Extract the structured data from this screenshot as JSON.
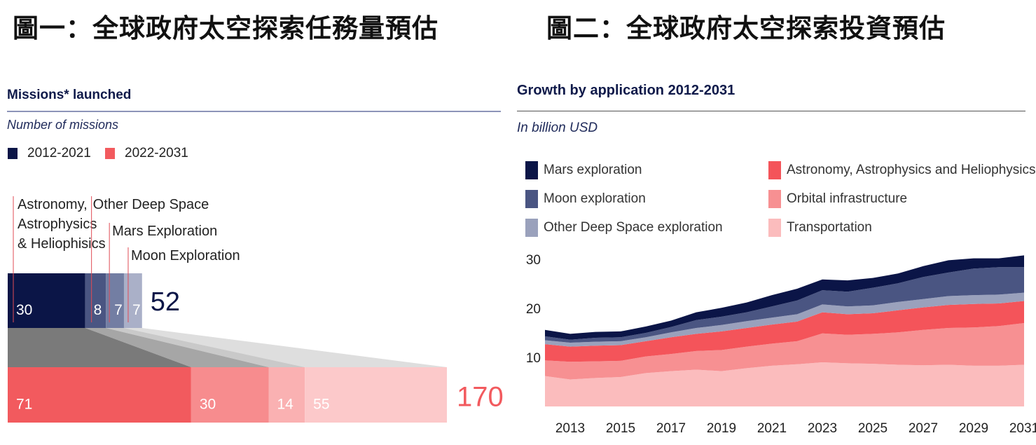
{
  "figure1": {
    "caption": "圖一：全球政府太空探索任務量預估",
    "heading": "Missions* launched",
    "subtitle": "Number of missions",
    "legend": [
      {
        "label": "2012-2021",
        "color": "#0b1547"
      },
      {
        "label": "2022-2031",
        "color": "#f25a5e"
      }
    ]
  },
  "figure2": {
    "caption": "圖二：全球政府太空探索投資預估",
    "heading": "Growth by application 2012-2031",
    "subtitle": "In billion USD",
    "legend": [
      {
        "label": "Mars exploration",
        "color": "#0b1547"
      },
      {
        "label": "Moon exploration",
        "color": "#4a5582"
      },
      {
        "label": "Other Deep Space exploration",
        "color": "#9aa1bc"
      },
      {
        "label": "Astronomy, Astrophysics and Heliophysics",
        "color": "#f4545a"
      },
      {
        "label": "Orbital infrastructure",
        "color": "#f79092"
      },
      {
        "label": "Transportation",
        "color": "#fbbcbd"
      }
    ]
  },
  "chart_data": [
    {
      "type": "bar",
      "title": "Missions* launched",
      "subtitle": "Number of missions",
      "categories": [
        "Astronomy, Astrophysics & Heliophisics",
        "Other Deep Space",
        "Mars Exploration",
        "Moon Exploration"
      ],
      "series": [
        {
          "name": "2012-2021",
          "values": [
            30,
            8,
            7,
            7
          ],
          "total": 52,
          "colors": [
            "#0b1547",
            "#4a5582",
            "#737ea3",
            "#aab0c8"
          ],
          "total_color": "#0b1547"
        },
        {
          "name": "2022-2031",
          "values": [
            71,
            30,
            14,
            55
          ],
          "total": 170,
          "colors": [
            "#f25a5e",
            "#f78c8e",
            "#fab1b2",
            "#fcc9ca"
          ],
          "total_color": "#f25a5e"
        }
      ],
      "category_labels": [
        "Astronomy,",
        "Astrophysics",
        "& Heliophisics",
        "Other Deep Space",
        "Mars Exploration",
        "Moon Exploration"
      ],
      "stacked": true,
      "orientation": "horizontal"
    },
    {
      "type": "area",
      "title": "Growth by application 2012-2031",
      "subtitle": "In billion USD",
      "stacked": true,
      "x": [
        2012,
        2013,
        2014,
        2015,
        2016,
        2017,
        2018,
        2019,
        2020,
        2021,
        2022,
        2023,
        2024,
        2025,
        2026,
        2027,
        2028,
        2029,
        2030,
        2031
      ],
      "x_ticks": [
        "2013",
        "2015",
        "2017",
        "2019",
        "2021",
        "2023",
        "2025",
        "2027",
        "2029",
        "2031"
      ],
      "y_ticks": [
        "10",
        "20",
        "30"
      ],
      "ylim": [
        0,
        31
      ],
      "grid": false,
      "legend_position": "top",
      "series": [
        {
          "name": "Transportation",
          "color": "#fbbcbd",
          "values": [
            6.2,
            5.5,
            5.8,
            6.0,
            6.8,
            7.2,
            7.5,
            7.2,
            7.8,
            8.3,
            8.6,
            9.0,
            8.8,
            8.7,
            8.5,
            8.4,
            8.5,
            8.3,
            8.3,
            8.5
          ]
        },
        {
          "name": "Orbital infrastructure",
          "color": "#f79092",
          "values": [
            3.2,
            3.6,
            3.4,
            3.3,
            3.4,
            3.5,
            3.8,
            4.3,
            4.4,
            4.5,
            4.7,
            5.9,
            5.8,
            6.1,
            6.6,
            7.2,
            7.5,
            7.8,
            8.1,
            8.5
          ]
        },
        {
          "name": "Astronomy, Astrophysics and Heliophysics",
          "color": "#f4545a",
          "values": [
            3.3,
            3.1,
            3.2,
            3.2,
            3.1,
            3.4,
            3.5,
            3.8,
            3.8,
            3.9,
            4.0,
            4.3,
            4.2,
            4.2,
            4.5,
            4.6,
            4.7,
            4.8,
            4.6,
            4.5
          ]
        },
        {
          "name": "Other Deep Space exploration",
          "color": "#9aa1bc",
          "values": [
            0.8,
            0.8,
            0.8,
            0.8,
            0.8,
            1.0,
            1.2,
            1.3,
            1.4,
            1.4,
            1.5,
            1.6,
            1.6,
            1.6,
            1.7,
            1.7,
            1.8,
            1.8,
            1.8,
            1.7
          ]
        },
        {
          "name": "Moon exploration",
          "color": "#4a5582",
          "values": [
            0.8,
            0.6,
            0.8,
            0.8,
            0.9,
            1.1,
            1.6,
            1.7,
            1.8,
            2.3,
            2.8,
            2.9,
            3.0,
            3.6,
            3.8,
            4.5,
            4.8,
            5.4,
            5.6,
            5.2
          ]
        },
        {
          "name": "Mars exploration",
          "color": "#0b1547",
          "values": [
            1.3,
            1.2,
            1.2,
            1.2,
            1.3,
            1.3,
            1.6,
            1.8,
            2.0,
            2.3,
            2.4,
            2.2,
            2.3,
            2.0,
            2.0,
            2.2,
            2.5,
            2.1,
            1.8,
            2.4
          ]
        }
      ]
    }
  ]
}
